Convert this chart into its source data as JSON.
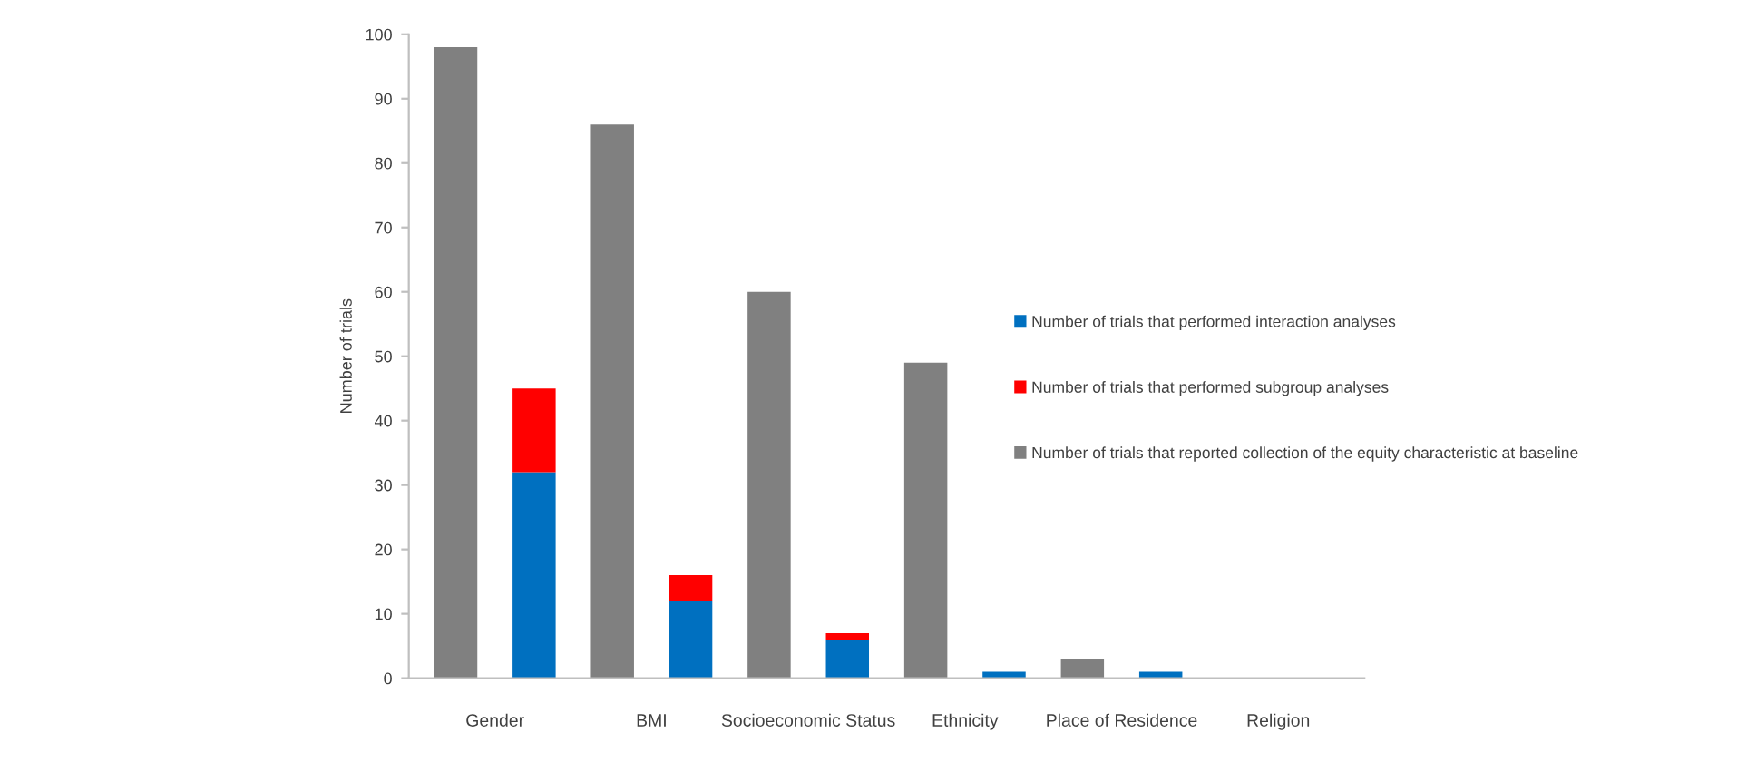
{
  "chart_data": {
    "type": "bar",
    "stacked": true,
    "ylabel": "Number of trials",
    "categories": [
      "Gender",
      null,
      "BMI",
      null,
      "Socioeconomic Status",
      null,
      "Ethnicity",
      null,
      "Place of Residence",
      null,
      "Religion",
      null
    ],
    "series": [
      {
        "name": "Number of trials that performed interaction analyses",
        "color": "#0070c0",
        "values": [
          null,
          32,
          null,
          12,
          null,
          6,
          null,
          1,
          null,
          1,
          null,
          0
        ]
      },
      {
        "name": "Number of trials that performed subgroup analyses",
        "color": "#ff0000",
        "values": [
          null,
          13,
          null,
          4,
          null,
          1,
          null,
          0,
          null,
          0,
          null,
          0
        ]
      },
      {
        "name": "Number of trials that reported collection of the equity characteristic at baseline",
        "color": "#808080",
        "values": [
          98,
          null,
          86,
          null,
          60,
          null,
          49,
          null,
          3,
          null,
          0,
          null
        ]
      }
    ],
    "ylim": [
      0,
      100
    ],
    "yticks": [
      0,
      10,
      20,
      30,
      40,
      50,
      60,
      70,
      80,
      90,
      100
    ],
    "grid": false,
    "legend": "right"
  }
}
